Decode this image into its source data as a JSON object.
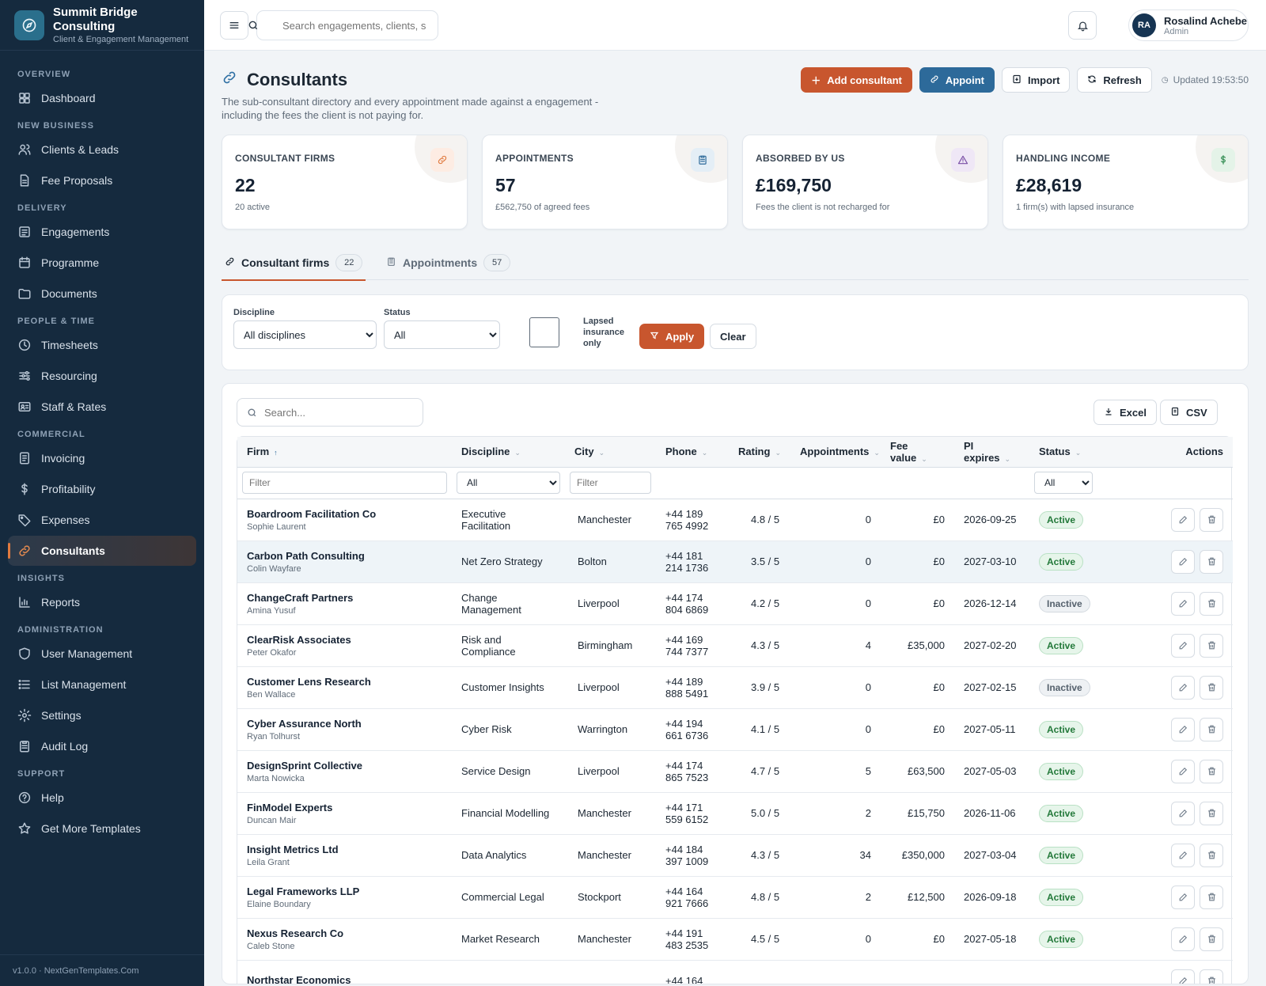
{
  "brand": {
    "title_line1": "Summit Bridge",
    "title_line2": "Consulting",
    "subtitle": "Client & Engagement Management"
  },
  "sidebar": {
    "sections": [
      {
        "title": "OVERVIEW",
        "items": [
          {
            "label": "Dashboard",
            "icon": "dashboard-icon"
          }
        ]
      },
      {
        "title": "NEW BUSINESS",
        "items": [
          {
            "label": "Clients & Leads",
            "icon": "users-icon"
          },
          {
            "label": "Fee Proposals",
            "icon": "document-icon"
          }
        ]
      },
      {
        "title": "DELIVERY",
        "items": [
          {
            "label": "Engagements",
            "icon": "briefcase-icon"
          },
          {
            "label": "Programme",
            "icon": "calendar-icon"
          },
          {
            "label": "Documents",
            "icon": "folder-icon"
          }
        ]
      },
      {
        "title": "PEOPLE & TIME",
        "items": [
          {
            "label": "Timesheets",
            "icon": "clock-icon"
          },
          {
            "label": "Resourcing",
            "icon": "sliders-icon"
          },
          {
            "label": "Staff & Rates",
            "icon": "id-card-icon"
          }
        ]
      },
      {
        "title": "COMMERCIAL",
        "items": [
          {
            "label": "Invoicing",
            "icon": "invoice-icon"
          },
          {
            "label": "Profitability",
            "icon": "dollar-icon"
          },
          {
            "label": "Expenses",
            "icon": "tag-icon"
          },
          {
            "label": "Consultants",
            "icon": "link-icon",
            "active": true
          }
        ]
      },
      {
        "title": "INSIGHTS",
        "items": [
          {
            "label": "Reports",
            "icon": "bar-chart-icon"
          }
        ]
      },
      {
        "title": "ADMINISTRATION",
        "items": [
          {
            "label": "User Management",
            "icon": "shield-icon"
          },
          {
            "label": "List Management",
            "icon": "list-icon"
          },
          {
            "label": "Settings",
            "icon": "gear-icon"
          },
          {
            "label": "Audit Log",
            "icon": "clipboard-icon"
          }
        ]
      },
      {
        "title": "SUPPORT",
        "items": [
          {
            "label": "Help",
            "icon": "help-icon"
          },
          {
            "label": "Get More Templates",
            "icon": "star-icon"
          }
        ]
      }
    ],
    "footer": "v1.0.0 · NextGenTemplates.Com"
  },
  "header": {
    "search_placeholder": "Search engagements, clients, s",
    "user": {
      "initials": "RA",
      "name": "Rosalind Achebe",
      "role": "Admin"
    }
  },
  "page": {
    "title": "Consultants",
    "description": "The sub-consultant directory and every appointment made against a engagement - including the fees the client is not paying for.",
    "actions": {
      "add": "Add consultant",
      "appoint": "Appoint",
      "import": "Import",
      "refresh": "Refresh",
      "updated": "Updated 19:53:50"
    }
  },
  "stats": [
    {
      "label": "CONSULTANT FIRMS",
      "value": "22",
      "sub": "20 active",
      "icon": "link-icon",
      "color": "#e07a3f",
      "bg": "#fdece3"
    },
    {
      "label": "APPOINTMENTS",
      "value": "57",
      "sub": "£562,750 of agreed fees",
      "icon": "clipboard-icon",
      "color": "#2d6a9a",
      "bg": "#e4eef6"
    },
    {
      "label": "ABSORBED BY US",
      "value": "£169,750",
      "sub": "Fees the client is not recharged for",
      "icon": "warning-icon",
      "color": "#7a4fa6",
      "bg": "#efe7f6"
    },
    {
      "label": "HANDLING INCOME",
      "value": "£28,619",
      "sub": "1 firm(s) with lapsed insurance",
      "icon": "dollar-icon",
      "color": "#2e8a4f",
      "bg": "#e4f3e8"
    }
  ],
  "tabs": [
    {
      "label": "Consultant firms",
      "count": "22",
      "active": true
    },
    {
      "label": "Appointments",
      "count": "57"
    }
  ],
  "filters": {
    "discipline_label": "Discipline",
    "discipline_value": "All disciplines",
    "status_label": "Status",
    "status_value": "All",
    "lapsed_label": "Lapsed insurance only",
    "apply": "Apply",
    "clear": "Clear"
  },
  "table": {
    "search_placeholder": "Search...",
    "excel": "Excel",
    "csv": "CSV",
    "columns": [
      "Firm",
      "Discipline",
      "City",
      "Phone",
      "Rating",
      "Appointments",
      "Fee value",
      "PI expires",
      "Status",
      "Actions"
    ],
    "filter_placeholder": "Filter",
    "filter_all": "All",
    "rows": [
      {
        "firm": "Boardroom Facilitation Co",
        "contact": "Sophie Laurent",
        "discipline": "Executive Facilitation",
        "city": "Manchester",
        "phone1": "+44 189",
        "phone2": "765 4992",
        "rating": "4.8 / 5",
        "appointments": "0",
        "fee": "£0",
        "pi": "2026-09-25",
        "status": "Active"
      },
      {
        "firm": "Carbon Path Consulting",
        "contact": "Colin Wayfare",
        "discipline": "Net Zero Strategy",
        "city": "Bolton",
        "phone1": "+44 181",
        "phone2": "214 1736",
        "rating": "3.5 / 5",
        "appointments": "0",
        "fee": "£0",
        "pi": "2027-03-10",
        "status": "Active"
      },
      {
        "firm": "ChangeCraft Partners",
        "contact": "Amina Yusuf",
        "discipline": "Change Management",
        "city": "Liverpool",
        "phone1": "+44 174",
        "phone2": "804 6869",
        "rating": "4.2 / 5",
        "appointments": "0",
        "fee": "£0",
        "pi": "2026-12-14",
        "status": "Inactive"
      },
      {
        "firm": "ClearRisk Associates",
        "contact": "Peter Okafor",
        "discipline": "Risk and Compliance",
        "city": "Birmingham",
        "phone1": "+44 169",
        "phone2": "744 7377",
        "rating": "4.3 / 5",
        "appointments": "4",
        "fee": "£35,000",
        "pi": "2027-02-20",
        "status": "Active"
      },
      {
        "firm": "Customer Lens Research",
        "contact": "Ben Wallace",
        "discipline": "Customer Insights",
        "city": "Liverpool",
        "phone1": "+44 189",
        "phone2": "888 5491",
        "rating": "3.9 / 5",
        "appointments": "0",
        "fee": "£0",
        "pi": "2027-02-15",
        "status": "Inactive"
      },
      {
        "firm": "Cyber Assurance North",
        "contact": "Ryan Tolhurst",
        "discipline": "Cyber Risk",
        "city": "Warrington",
        "phone1": "+44 194",
        "phone2": "661 6736",
        "rating": "4.1 / 5",
        "appointments": "0",
        "fee": "£0",
        "pi": "2027-05-11",
        "status": "Active"
      },
      {
        "firm": "DesignSprint Collective",
        "contact": "Marta Nowicka",
        "discipline": "Service Design",
        "city": "Liverpool",
        "phone1": "+44 174",
        "phone2": "865 7523",
        "rating": "4.7 / 5",
        "appointments": "5",
        "fee": "£63,500",
        "pi": "2027-05-03",
        "status": "Active"
      },
      {
        "firm": "FinModel Experts",
        "contact": "Duncan Mair",
        "discipline": "Financial Modelling",
        "city": "Manchester",
        "phone1": "+44 171",
        "phone2": "559 6152",
        "rating": "5.0 / 5",
        "appointments": "2",
        "fee": "£15,750",
        "pi": "2026-11-06",
        "status": "Active"
      },
      {
        "firm": "Insight Metrics Ltd",
        "contact": "Leila Grant",
        "discipline": "Data Analytics",
        "city": "Manchester",
        "phone1": "+44 184",
        "phone2": "397 1009",
        "rating": "4.3 / 5",
        "appointments": "34",
        "fee": "£350,000",
        "pi": "2027-03-04",
        "status": "Active"
      },
      {
        "firm": "Legal Frameworks LLP",
        "contact": "Elaine Boundary",
        "discipline": "Commercial Legal",
        "city": "Stockport",
        "phone1": "+44 164",
        "phone2": "921 7666",
        "rating": "4.8 / 5",
        "appointments": "2",
        "fee": "£12,500",
        "pi": "2026-09-18",
        "status": "Active"
      },
      {
        "firm": "Nexus Research Co",
        "contact": "Caleb Stone",
        "discipline": "Market Research",
        "city": "Manchester",
        "phone1": "+44 191",
        "phone2": "483 2535",
        "rating": "4.5 / 5",
        "appointments": "0",
        "fee": "£0",
        "pi": "2027-05-18",
        "status": "Active"
      },
      {
        "firm": "Northstar Economics",
        "contact": "",
        "discipline": "",
        "city": "",
        "phone1": "+44 164",
        "phone2": "",
        "rating": "",
        "appointments": "",
        "fee": "",
        "pi": "",
        "status": ""
      }
    ]
  }
}
